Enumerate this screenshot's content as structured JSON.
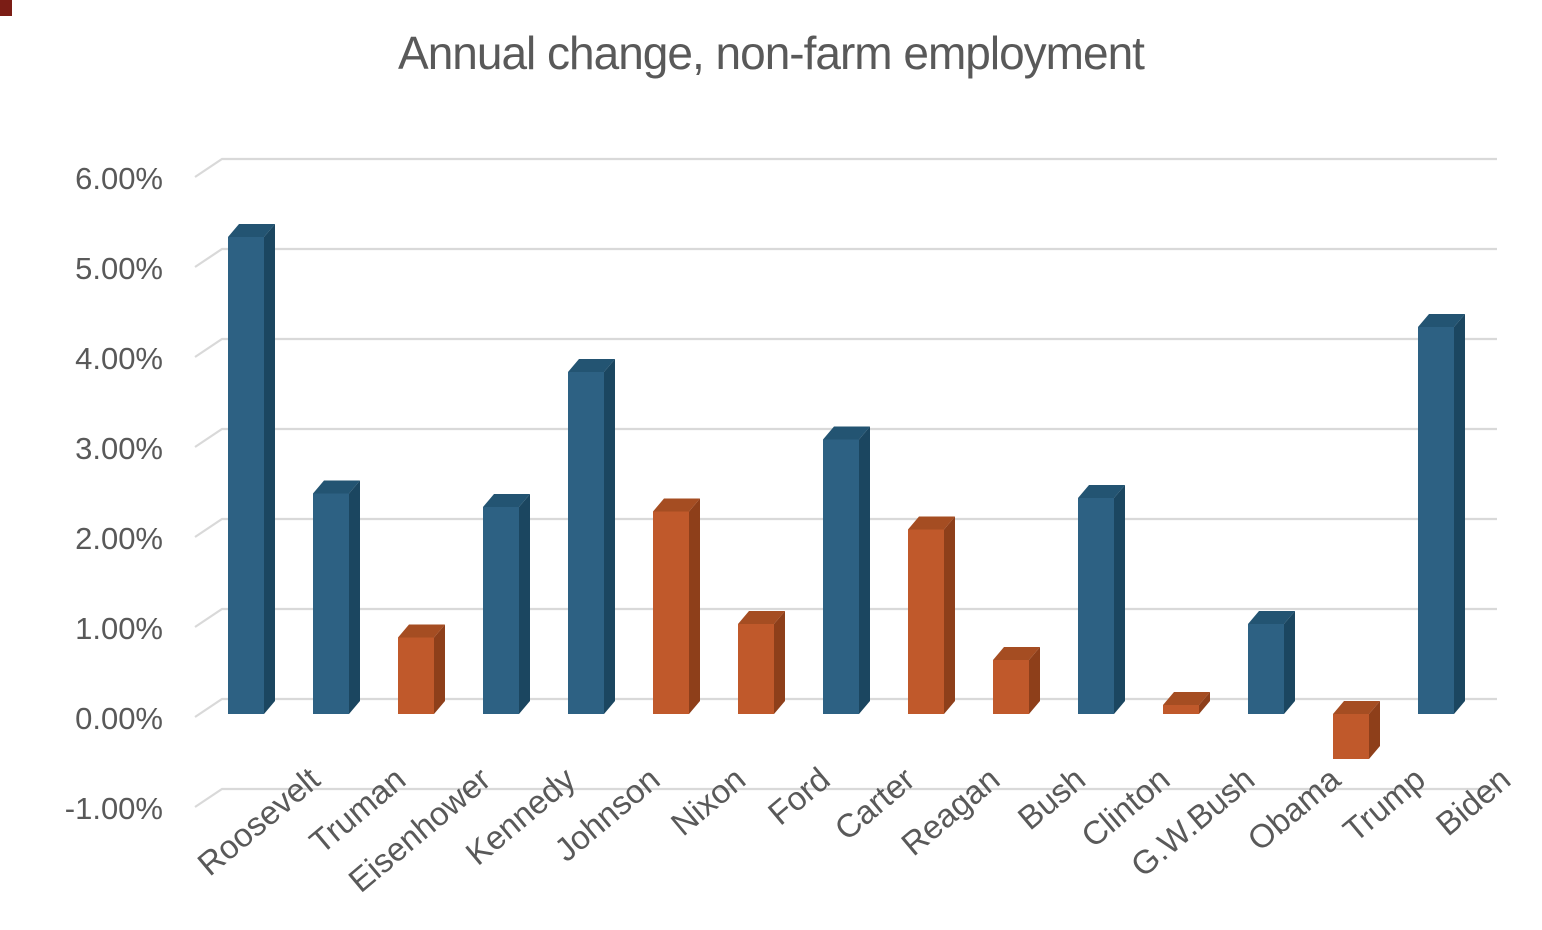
{
  "page": {
    "background": "#ffffff",
    "title_color": "#595959",
    "axis_label_color": "#595959",
    "gridline_color": "#d9d9d9",
    "corner_artifact_color": "#7b1d15"
  },
  "chart_data": {
    "type": "bar",
    "style": "3d-column",
    "title": "Annual change, non-farm employment",
    "categories": [
      "Roosevelt",
      "Truman",
      "Eisenhower",
      "Kennedy",
      "Johnson",
      "Nixon",
      "Ford",
      "Carter",
      "Reagan",
      "Bush",
      "Clinton",
      "G.W.Bush",
      "Obama",
      "Trump",
      "Biden"
    ],
    "values": [
      5.3,
      2.45,
      0.85,
      2.3,
      3.8,
      2.25,
      1.0,
      3.05,
      2.05,
      0.6,
      2.4,
      0.1,
      1.0,
      -0.5,
      4.3
    ],
    "unit": "%",
    "parties": [
      "D",
      "D",
      "R",
      "D",
      "D",
      "R",
      "R",
      "D",
      "R",
      "R",
      "D",
      "R",
      "D",
      "R",
      "D"
    ],
    "bar_colors": {
      "D": {
        "front": "#2d6183",
        "top": "#235472",
        "side": "#1b4660"
      },
      "R": {
        "front": "#c0592b",
        "top": "#a54d22",
        "side": "#8e3f1a"
      }
    },
    "xlabel": "",
    "ylabel": "",
    "ylim": [
      -1,
      6
    ],
    "ytick_values": [
      6,
      5,
      4,
      3,
      2,
      1,
      0,
      -1
    ],
    "ytick_labels": [
      "6.00%",
      "5.00%",
      "4.00%",
      "3.00%",
      "2.00%",
      "1.00%",
      "0.00%",
      "-1.00%"
    ],
    "grid": true,
    "legend": "none"
  }
}
